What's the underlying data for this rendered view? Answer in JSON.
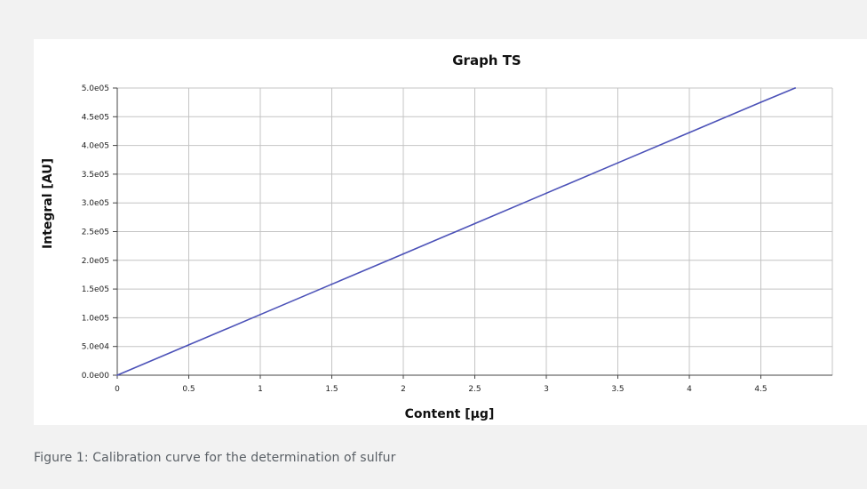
{
  "caption": "Figure 1: Calibration curve for the determination of sulfur",
  "colors": {
    "series": "#4c52b8",
    "grid": "#c4c4c4",
    "axis": "#444444"
  },
  "chart_data": {
    "type": "line",
    "title": "Graph TS",
    "xlabel": "Content [µg]",
    "ylabel": "Integral [AU]",
    "xlim": [
      0,
      5
    ],
    "ylim": [
      0,
      500000
    ],
    "x_ticks": [
      0,
      0.5,
      1,
      1.5,
      2,
      2.5,
      3,
      3.5,
      4,
      4.5
    ],
    "x_tick_labels": [
      "0",
      "0.5",
      "1",
      "1.5",
      "2",
      "2.5",
      "3",
      "3.5",
      "4",
      "4.5"
    ],
    "y_ticks": [
      0,
      50000,
      100000,
      150000,
      200000,
      250000,
      300000,
      350000,
      400000,
      450000,
      500000
    ],
    "y_tick_labels": [
      "0.0e00",
      "5.0e04",
      "1.0e05",
      "1.5e05",
      "2.0e05",
      "2.5e05",
      "3.0e05",
      "3.5e05",
      "4.0e05",
      "4.5e05",
      "5.0e05"
    ],
    "grid": true,
    "series": [
      {
        "x": [
          0,
          0.5,
          1,
          1.5,
          2,
          2.5,
          3,
          3.5,
          4,
          4.5,
          4.74
        ],
        "y": [
          0,
          52800,
          105600,
          158400,
          211200,
          264000,
          316800,
          369600,
          422400,
          475200,
          500000
        ]
      }
    ]
  }
}
